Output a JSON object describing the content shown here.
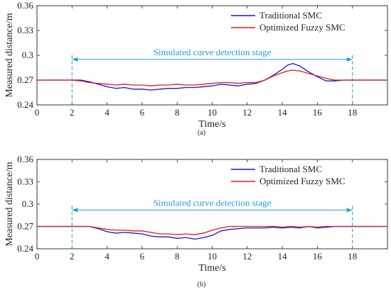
{
  "chart_data": [
    {
      "type": "line",
      "panel_label": "(a)",
      "xlabel": "Time/s",
      "ylabel": "Measured distance/m",
      "xlim": [
        0,
        20
      ],
      "ylim": [
        0.24,
        0.36
      ],
      "xticks": [
        0,
        2,
        4,
        6,
        8,
        10,
        12,
        14,
        16,
        18
      ],
      "yticks": [
        0.24,
        0.27,
        0.3,
        0.33,
        0.36
      ],
      "ytick_labels": [
        "0.24",
        "0.27",
        "0.3",
        "0.33",
        "0.36"
      ],
      "grid": false,
      "legend_position": "top-right",
      "annotation": {
        "text": "Simulated curve detection stage",
        "x_start": 2,
        "x_end": 18,
        "y": 0.295,
        "color": "#1f9bde"
      },
      "series": [
        {
          "name": "Traditional SMC",
          "color": "#1515d6",
          "x": [
            0,
            1,
            2,
            2.5,
            3,
            3.5,
            4,
            4.5,
            5,
            5.5,
            6,
            6.5,
            7,
            7.5,
            8,
            8.5,
            9,
            9.5,
            10,
            10.5,
            11,
            11.5,
            12,
            12.5,
            13,
            13.5,
            14,
            14.3,
            14.6,
            15,
            15.5,
            16,
            16.5,
            17,
            17.5,
            18,
            19,
            20
          ],
          "y": [
            0.27,
            0.27,
            0.27,
            0.27,
            0.268,
            0.265,
            0.262,
            0.26,
            0.261,
            0.259,
            0.259,
            0.258,
            0.259,
            0.26,
            0.26,
            0.261,
            0.261,
            0.262,
            0.263,
            0.265,
            0.264,
            0.263,
            0.265,
            0.266,
            0.27,
            0.276,
            0.283,
            0.288,
            0.29,
            0.287,
            0.28,
            0.274,
            0.269,
            0.269,
            0.27,
            0.27,
            0.27,
            0.27
          ]
        },
        {
          "name": "Optimized Fuzzy SMC",
          "color": "#e01b1b",
          "x": [
            0,
            1,
            2,
            2.5,
            3,
            3.5,
            4,
            4.5,
            5,
            5.5,
            6,
            6.5,
            7,
            7.5,
            8,
            8.5,
            9,
            9.5,
            10,
            10.5,
            11,
            11.5,
            12,
            12.5,
            13,
            13.5,
            14,
            14.3,
            14.6,
            15,
            15.5,
            16,
            16.5,
            17,
            17.5,
            18,
            19,
            20
          ],
          "y": [
            0.27,
            0.27,
            0.27,
            0.269,
            0.267,
            0.266,
            0.265,
            0.264,
            0.265,
            0.264,
            0.264,
            0.263,
            0.264,
            0.264,
            0.265,
            0.264,
            0.264,
            0.265,
            0.266,
            0.267,
            0.267,
            0.266,
            0.267,
            0.267,
            0.27,
            0.275,
            0.279,
            0.281,
            0.282,
            0.281,
            0.278,
            0.275,
            0.272,
            0.27,
            0.27,
            0.27,
            0.27,
            0.27
          ]
        }
      ]
    },
    {
      "type": "line",
      "panel_label": "(b)",
      "xlabel": "Time/s",
      "ylabel": "Measured distance/m",
      "xlim": [
        0,
        20
      ],
      "ylim": [
        0.24,
        0.36
      ],
      "xticks": [
        0,
        2,
        4,
        6,
        8,
        10,
        12,
        14,
        16,
        18
      ],
      "yticks": [
        0.24,
        0.27,
        0.3,
        0.33,
        0.36
      ],
      "ytick_labels": [
        "0.24",
        "0.27",
        "0.3",
        "0.33",
        "0.36"
      ],
      "grid": false,
      "legend_position": "top-right",
      "annotation": {
        "text": "Simulated curve detection stage",
        "x_start": 2,
        "x_end": 18,
        "y": 0.292,
        "color": "#1f9bde"
      },
      "series": [
        {
          "name": "Traditional SMC",
          "color": "#1515d6",
          "x": [
            0,
            1,
            2,
            2.5,
            3,
            3.5,
            4,
            4.5,
            5,
            5.5,
            6,
            6.5,
            7,
            7.5,
            8,
            8.5,
            9,
            9.5,
            10,
            10.5,
            11,
            11.5,
            12,
            12.5,
            13,
            13.5,
            14,
            14.5,
            15,
            15.5,
            16,
            16.5,
            17,
            17.5,
            18,
            19,
            20
          ],
          "y": [
            0.27,
            0.27,
            0.27,
            0.27,
            0.27,
            0.267,
            0.263,
            0.261,
            0.262,
            0.261,
            0.26,
            0.257,
            0.256,
            0.256,
            0.254,
            0.255,
            0.253,
            0.255,
            0.258,
            0.264,
            0.266,
            0.267,
            0.268,
            0.268,
            0.268,
            0.269,
            0.268,
            0.269,
            0.268,
            0.27,
            0.268,
            0.269,
            0.27,
            0.27,
            0.27,
            0.27,
            0.27
          ]
        },
        {
          "name": "Optimized Fuzzy SMC",
          "color": "#e01b1b",
          "x": [
            0,
            1,
            2,
            2.5,
            3,
            3.5,
            4,
            4.5,
            5,
            5.5,
            6,
            6.5,
            7,
            7.5,
            8,
            8.5,
            9,
            9.5,
            10,
            10.5,
            11,
            11.5,
            12,
            12.5,
            13,
            13.5,
            14,
            14.5,
            15,
            15.5,
            16,
            16.5,
            17,
            17.5,
            18,
            19,
            20
          ],
          "y": [
            0.27,
            0.27,
            0.27,
            0.27,
            0.27,
            0.268,
            0.266,
            0.265,
            0.265,
            0.264,
            0.264,
            0.262,
            0.26,
            0.26,
            0.259,
            0.26,
            0.259,
            0.261,
            0.265,
            0.268,
            0.27,
            0.27,
            0.27,
            0.27,
            0.27,
            0.27,
            0.269,
            0.27,
            0.269,
            0.27,
            0.269,
            0.27,
            0.27,
            0.27,
            0.27,
            0.27,
            0.27
          ]
        }
      ]
    }
  ]
}
